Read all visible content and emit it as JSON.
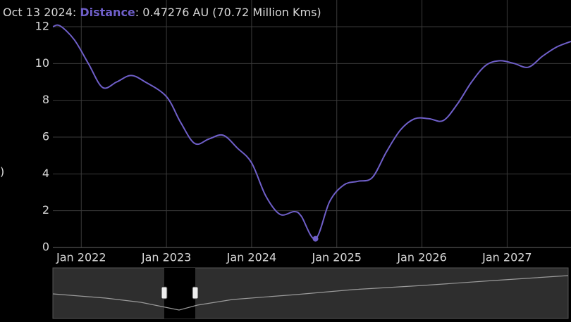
{
  "chart_data": {
    "type": "line",
    "title_date": "Oct 13 2024:",
    "title_readout": ": 0.47276 AU (70.72 Million Kms)",
    "y_label": ")",
    "x": [
      "2021-09",
      "2021-10",
      "2021-12",
      "2022-02",
      "2022-04",
      "2022-06",
      "2022-08",
      "2022-10",
      "2023-01",
      "2023-03",
      "2023-05",
      "2023-07",
      "2023-09",
      "2023-11",
      "2024-01",
      "2024-03",
      "2024-05",
      "2024-07",
      "2024-08",
      "2024-10",
      "2024-12",
      "2025-02",
      "2025-04",
      "2025-06",
      "2025-08",
      "2025-10",
      "2025-12",
      "2026-02",
      "2026-04",
      "2026-06",
      "2026-08",
      "2026-10",
      "2026-12",
      "2027-02",
      "2027-04",
      "2027-06",
      "2027-08",
      "2027-10"
    ],
    "series": [
      {
        "name": "Distance",
        "color": "#6f5fc9",
        "values": [
          12.0,
          12.05,
          11.3,
          10.0,
          8.7,
          9.0,
          9.35,
          9.0,
          8.2,
          6.8,
          5.65,
          5.9,
          6.1,
          5.4,
          4.6,
          2.8,
          1.8,
          1.95,
          1.7,
          0.47276,
          2.5,
          3.4,
          3.6,
          3.8,
          5.2,
          6.4,
          7.0,
          7.0,
          6.9,
          7.8,
          9.0,
          9.9,
          10.15,
          10.0,
          9.8,
          10.4,
          10.9,
          11.2
        ]
      }
    ],
    "highlight_index": 19,
    "xlim": [
      "2021-09",
      "2027-10"
    ],
    "xticks": [
      {
        "value": "2022-01",
        "label": "Jan 2022"
      },
      {
        "value": "2023-01",
        "label": "Jan 2023"
      },
      {
        "value": "2024-01",
        "label": "Jan 2024"
      },
      {
        "value": "2025-01",
        "label": "Jan 2025"
      },
      {
        "value": "2026-01",
        "label": "Jan 2026"
      },
      {
        "value": "2027-01",
        "label": "Jan 2027"
      }
    ],
    "ylim": [
      0,
      12
    ],
    "yticks": [
      0,
      2,
      4,
      6,
      8,
      10,
      12
    ],
    "grid": true
  }
}
